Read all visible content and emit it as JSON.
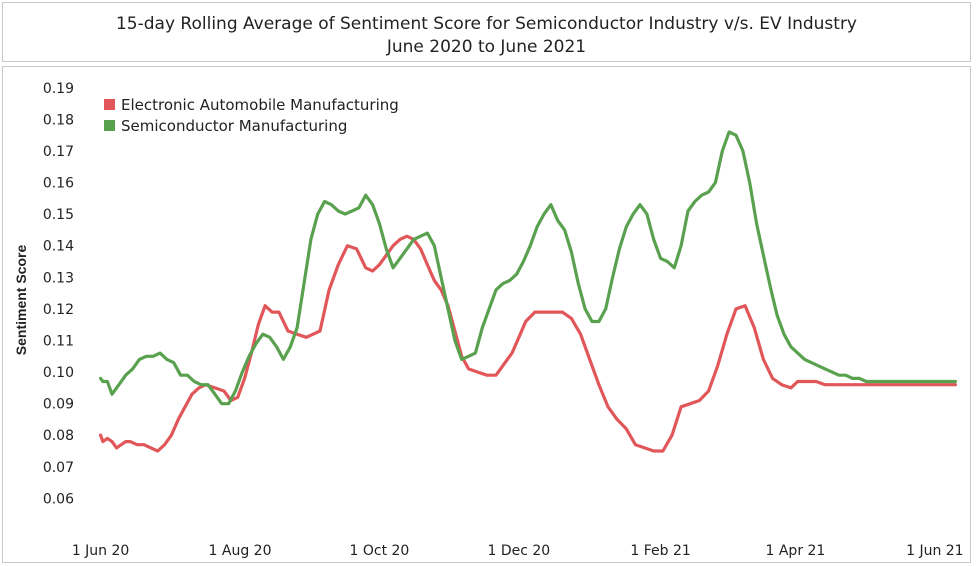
{
  "chart_data": {
    "type": "line",
    "title": "15-day Rolling Average of Sentiment Score for Semiconductor Industry v/s. EV Industry",
    "subtitle": "June 2020 to June 2021",
    "xlabel": "",
    "ylabel": "Sentiment Score",
    "ylim": [
      0.05,
      0.195
    ],
    "yticks": [
      "0.06",
      "0.07",
      "0.08",
      "0.09",
      "0.10",
      "0.11",
      "0.12",
      "0.13",
      "0.14",
      "0.15",
      "0.16",
      "0.17",
      "0.18",
      "0.19"
    ],
    "xticks": [
      {
        "date": "2020-06-01",
        "label": "1 Jun 20"
      },
      {
        "date": "2020-08-01",
        "label": "1 Aug 20"
      },
      {
        "date": "2020-10-01",
        "label": "1 Oct 20"
      },
      {
        "date": "2020-12-01",
        "label": "1 Dec 20"
      },
      {
        "date": "2021-02-01",
        "label": "1 Feb 21"
      },
      {
        "date": "2021-04-01",
        "label": "1 Apr 21"
      },
      {
        "date": "2021-06-01",
        "label": "1 Jun 21"
      }
    ],
    "xlim": [
      "2020-05-23",
      "2021-06-12"
    ],
    "grid": false,
    "legend_position": "top-left",
    "series": [
      {
        "name": "Electronic Automobile Manufacturing",
        "color": "#e15759",
        "x": [
          "2020-06-01",
          "2020-06-02",
          "2020-06-04",
          "2020-06-06",
          "2020-06-08",
          "2020-06-10",
          "2020-06-12",
          "2020-06-14",
          "2020-06-17",
          "2020-06-20",
          "2020-06-23",
          "2020-06-26",
          "2020-06-29",
          "2020-07-02",
          "2020-07-05",
          "2020-07-08",
          "2020-07-11",
          "2020-07-14",
          "2020-07-17",
          "2020-07-21",
          "2020-07-25",
          "2020-07-28",
          "2020-07-31",
          "2020-08-03",
          "2020-08-06",
          "2020-08-09",
          "2020-08-12",
          "2020-08-15",
          "2020-08-18",
          "2020-08-22",
          "2020-08-26",
          "2020-08-30",
          "2020-09-02",
          "2020-09-05",
          "2020-09-09",
          "2020-09-13",
          "2020-09-17",
          "2020-09-21",
          "2020-09-25",
          "2020-09-28",
          "2020-10-01",
          "2020-10-04",
          "2020-10-07",
          "2020-10-10",
          "2020-10-13",
          "2020-10-16",
          "2020-10-19",
          "2020-10-22",
          "2020-10-25",
          "2020-10-28",
          "2020-10-31",
          "2020-11-03",
          "2020-11-06",
          "2020-11-09",
          "2020-11-13",
          "2020-11-17",
          "2020-11-21",
          "2020-11-25",
          "2020-11-28",
          "2020-12-01",
          "2020-12-04",
          "2020-12-08",
          "2020-12-12",
          "2020-12-16",
          "2020-12-20",
          "2020-12-24",
          "2020-12-28",
          "2021-01-01",
          "2021-01-05",
          "2021-01-09",
          "2021-01-13",
          "2021-01-17",
          "2021-01-21",
          "2021-01-25",
          "2021-01-29",
          "2021-02-02",
          "2021-02-06",
          "2021-02-10",
          "2021-02-14",
          "2021-02-18",
          "2021-02-22",
          "2021-02-26",
          "2021-03-02",
          "2021-03-06",
          "2021-03-10",
          "2021-03-14",
          "2021-03-18",
          "2021-03-22",
          "2021-03-26",
          "2021-03-30",
          "2021-04-02",
          "2021-04-06",
          "2021-04-10",
          "2021-04-14",
          "2021-04-18",
          "2021-04-22",
          "2021-04-26",
          "2021-04-30",
          "2021-05-03",
          "2021-05-06",
          "2021-05-09",
          "2021-05-12",
          "2021-05-15",
          "2021-05-18",
          "2021-05-21",
          "2021-05-24",
          "2021-05-28",
          "2021-06-01",
          "2021-06-04",
          "2021-06-07",
          "2021-06-10"
        ],
        "y": [
          0.08,
          0.078,
          0.079,
          0.078,
          0.076,
          0.077,
          0.078,
          0.078,
          0.077,
          0.077,
          0.076,
          0.075,
          0.077,
          0.08,
          0.085,
          0.089,
          0.093,
          0.095,
          0.096,
          0.095,
          0.094,
          0.091,
          0.092,
          0.098,
          0.106,
          0.115,
          0.121,
          0.119,
          0.119,
          0.113,
          0.112,
          0.111,
          0.112,
          0.113,
          0.126,
          0.134,
          0.14,
          0.139,
          0.133,
          0.132,
          0.134,
          0.137,
          0.14,
          0.142,
          0.143,
          0.142,
          0.139,
          0.134,
          0.129,
          0.126,
          0.121,
          0.113,
          0.105,
          0.101,
          0.1,
          0.099,
          0.099,
          0.103,
          0.106,
          0.111,
          0.116,
          0.119,
          0.119,
          0.119,
          0.119,
          0.117,
          0.112,
          0.104,
          0.096,
          0.089,
          0.085,
          0.082,
          0.077,
          0.076,
          0.075,
          0.075,
          0.08,
          0.089,
          0.09,
          0.091,
          0.094,
          0.102,
          0.112,
          0.12,
          0.121,
          0.114,
          0.104,
          0.098,
          0.096,
          0.095,
          0.097,
          0.097,
          0.097,
          0.096,
          0.096,
          0.096,
          0.096,
          0.096,
          0.096,
          0.096,
          0.096,
          0.096,
          0.096,
          0.096,
          0.096,
          0.096,
          0.096,
          0.096,
          0.096,
          0.096,
          0.096
        ]
      },
      {
        "name": "Semiconductor Manufacturing",
        "color": "#59a14f",
        "x": [
          "2020-06-01",
          "2020-06-02",
          "2020-06-04",
          "2020-06-06",
          "2020-06-09",
          "2020-06-12",
          "2020-06-15",
          "2020-06-18",
          "2020-06-21",
          "2020-06-24",
          "2020-06-27",
          "2020-06-30",
          "2020-07-03",
          "2020-07-06",
          "2020-07-09",
          "2020-07-12",
          "2020-07-15",
          "2020-07-18",
          "2020-07-21",
          "2020-07-24",
          "2020-07-27",
          "2020-07-30",
          "2020-08-02",
          "2020-08-05",
          "2020-08-08",
          "2020-08-11",
          "2020-08-14",
          "2020-08-17",
          "2020-08-20",
          "2020-08-23",
          "2020-08-26",
          "2020-08-29",
          "2020-09-01",
          "2020-09-04",
          "2020-09-07",
          "2020-09-10",
          "2020-09-13",
          "2020-09-16",
          "2020-09-19",
          "2020-09-22",
          "2020-09-25",
          "2020-09-28",
          "2020-10-01",
          "2020-10-04",
          "2020-10-07",
          "2020-10-10",
          "2020-10-13",
          "2020-10-16",
          "2020-10-19",
          "2020-10-22",
          "2020-10-25",
          "2020-10-28",
          "2020-10-31",
          "2020-11-03",
          "2020-11-06",
          "2020-11-09",
          "2020-11-12",
          "2020-11-15",
          "2020-11-18",
          "2020-11-21",
          "2020-11-24",
          "2020-11-27",
          "2020-11-30",
          "2020-12-03",
          "2020-12-06",
          "2020-12-09",
          "2020-12-12",
          "2020-12-15",
          "2020-12-18",
          "2020-12-21",
          "2020-12-24",
          "2020-12-27",
          "2020-12-30",
          "2021-01-02",
          "2021-01-05",
          "2021-01-08",
          "2021-01-11",
          "2021-01-14",
          "2021-01-17",
          "2021-01-20",
          "2021-01-23",
          "2021-01-26",
          "2021-01-29",
          "2021-02-01",
          "2021-02-04",
          "2021-02-07",
          "2021-02-10",
          "2021-02-13",
          "2021-02-16",
          "2021-02-19",
          "2021-02-22",
          "2021-02-25",
          "2021-02-28",
          "2021-03-03",
          "2021-03-06",
          "2021-03-09",
          "2021-03-12",
          "2021-03-15",
          "2021-03-18",
          "2021-03-21",
          "2021-03-24",
          "2021-03-27",
          "2021-03-30",
          "2021-04-02",
          "2021-04-05",
          "2021-04-08",
          "2021-04-11",
          "2021-04-14",
          "2021-04-17",
          "2021-04-20",
          "2021-04-23",
          "2021-04-26",
          "2021-04-29",
          "2021-05-02",
          "2021-05-05",
          "2021-05-08",
          "2021-05-11",
          "2021-05-14",
          "2021-05-17",
          "2021-05-20",
          "2021-05-23",
          "2021-05-26",
          "2021-05-29",
          "2021-06-01",
          "2021-06-04",
          "2021-06-07",
          "2021-06-10"
        ],
        "y": [
          0.098,
          0.097,
          0.097,
          0.093,
          0.096,
          0.099,
          0.101,
          0.104,
          0.105,
          0.105,
          0.106,
          0.104,
          0.103,
          0.099,
          0.099,
          0.097,
          0.096,
          0.096,
          0.093,
          0.09,
          0.09,
          0.094,
          0.1,
          0.105,
          0.109,
          0.112,
          0.111,
          0.108,
          0.104,
          0.108,
          0.114,
          0.128,
          0.142,
          0.15,
          0.154,
          0.153,
          0.151,
          0.15,
          0.151,
          0.152,
          0.156,
          0.153,
          0.147,
          0.139,
          0.133,
          0.136,
          0.139,
          0.142,
          0.143,
          0.144,
          0.14,
          0.13,
          0.12,
          0.11,
          0.104,
          0.105,
          0.106,
          0.114,
          0.12,
          0.126,
          0.128,
          0.129,
          0.131,
          0.135,
          0.14,
          0.146,
          0.15,
          0.153,
          0.148,
          0.145,
          0.138,
          0.128,
          0.12,
          0.116,
          0.116,
          0.12,
          0.13,
          0.139,
          0.146,
          0.15,
          0.153,
          0.15,
          0.142,
          0.136,
          0.135,
          0.133,
          0.14,
          0.151,
          0.154,
          0.156,
          0.157,
          0.16,
          0.17,
          0.176,
          0.175,
          0.17,
          0.16,
          0.147,
          0.137,
          0.127,
          0.118,
          0.112,
          0.108,
          0.106,
          0.104,
          0.103,
          0.102,
          0.101,
          0.1,
          0.099,
          0.099,
          0.098,
          0.098,
          0.097,
          0.097,
          0.097,
          0.097,
          0.097,
          0.097,
          0.097,
          0.097,
          0.097,
          0.097,
          0.097,
          0.097,
          0.097,
          0.097
        ]
      }
    ]
  }
}
